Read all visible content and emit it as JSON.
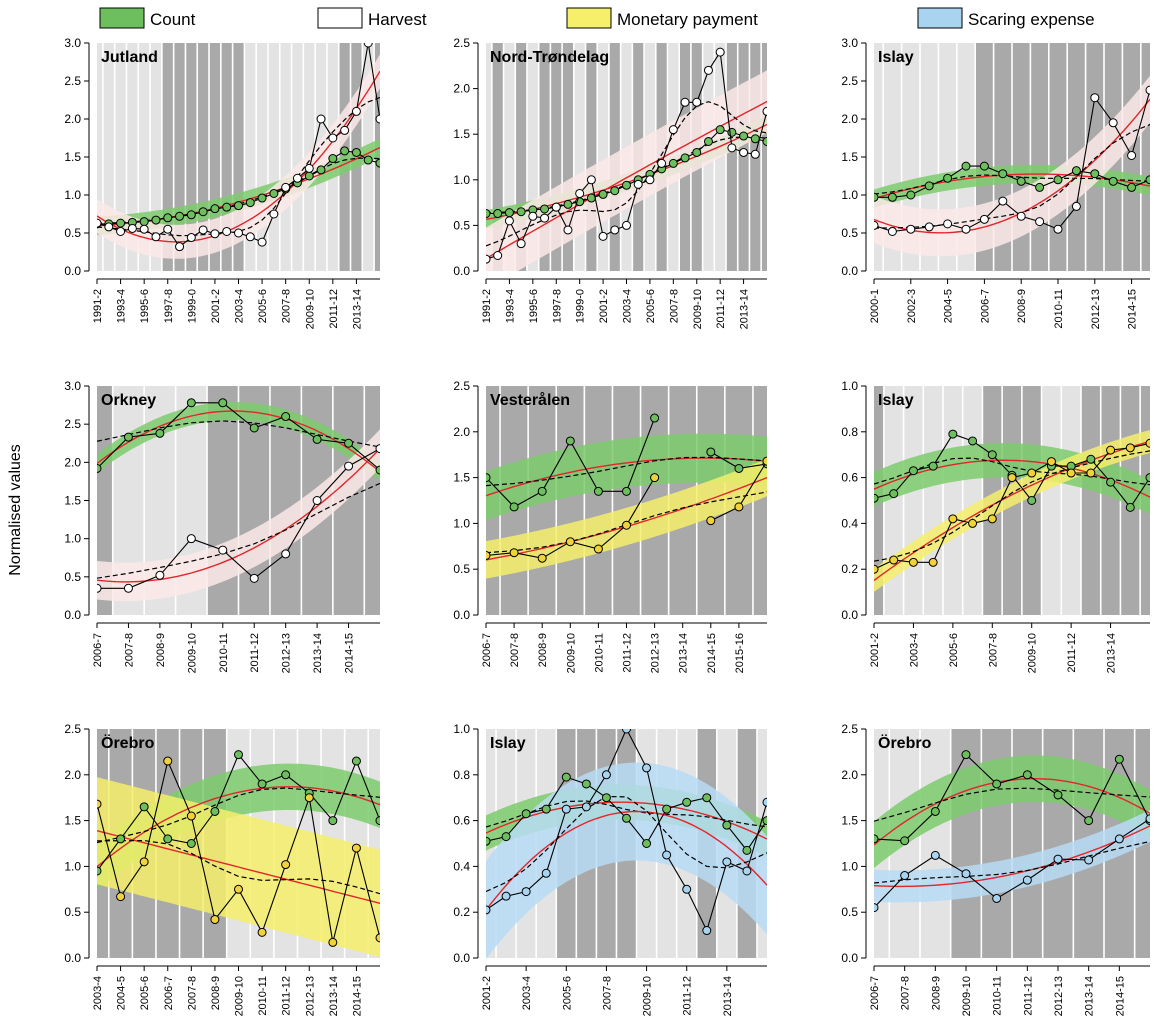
{
  "ylabel": "Normalised values",
  "legend": [
    {
      "label": "Count",
      "color": "#6dbf5e"
    },
    {
      "label": "Harvest",
      "color": "#ffffff"
    },
    {
      "label": "Monetary payment",
      "color": "#f5ef6a"
    },
    {
      "label": "Scaring expense",
      "color": "#a8d4f0"
    }
  ],
  "colors": {
    "count_fill": "#6dbf5e",
    "count_band": "#7ccb6c",
    "harvest_fill": "#ffffff",
    "harvest_band": "#fbe9e7",
    "payment_fill": "#f2d23a",
    "payment_band": "#f5ef6a",
    "scaring_fill": "#a8d4f0",
    "scaring_band": "#b7dcf5",
    "trend_red": "#e3262b",
    "trend_blue": "#2f5fb5",
    "shade_dark": "#a9a9a9",
    "shade_light": "#e3e3e3"
  },
  "chart_data": [
    {
      "title": "Jutland",
      "type": "line",
      "ylim": [
        0,
        3.0
      ],
      "yticks": [
        "0.0",
        "0.5",
        "1.0",
        "1.5",
        "2.0",
        "2.5",
        "3.0"
      ],
      "x": [
        1991,
        1992,
        1993,
        1994,
        1995,
        1996,
        1997,
        1998,
        1999,
        2000,
        2001,
        2002,
        2003,
        2004,
        2005,
        2006,
        2007,
        2008,
        2009,
        2010,
        2011,
        2012,
        2013,
        2014,
        2015
      ],
      "xticklabels": [
        "1991-2",
        "1993-4",
        "1995-6",
        "1997-8",
        "1999-0",
        "2001-2",
        "2003-4",
        "2005-6",
        "2007-8",
        "2009-10",
        "2011-12",
        "2013-14"
      ],
      "xtickpositions": [
        1991,
        1993,
        1995,
        1997,
        1999,
        2001,
        2003,
        2005,
        2007,
        2009,
        2011,
        2013
      ],
      "shading": [
        "light",
        "light",
        "light",
        "light",
        "light",
        "light",
        "dark",
        "dark",
        "dark",
        "dark",
        "dark",
        "dark",
        "dark",
        "light",
        "light",
        "light",
        "light",
        "light",
        "light",
        "light",
        "light",
        "dark",
        "dark",
        "light",
        "dark"
      ],
      "series": [
        {
          "name": "Count",
          "kind": "count",
          "values": [
            0.62,
            0.62,
            0.63,
            0.64,
            0.65,
            0.67,
            0.7,
            0.72,
            0.74,
            0.78,
            0.82,
            0.84,
            0.86,
            0.9,
            0.96,
            1.02,
            1.08,
            1.16,
            1.25,
            1.33,
            1.48,
            1.58,
            1.56,
            1.46,
            1.42
          ]
        },
        {
          "name": "Harvest",
          "kind": "harvest",
          "values": [
            0.63,
            0.58,
            0.52,
            0.56,
            0.55,
            0.45,
            0.55,
            0.32,
            0.44,
            0.54,
            0.49,
            0.52,
            0.5,
            0.45,
            0.38,
            0.75,
            1.1,
            1.22,
            1.35,
            2.0,
            1.75,
            1.85,
            2.1,
            3.0,
            2.0
          ]
        }
      ]
    },
    {
      "title": "Nord-Trøndelag",
      "type": "line",
      "ylim": [
        0,
        2.5
      ],
      "yticks": [
        "0.0",
        "0.5",
        "1.0",
        "1.5",
        "2.0",
        "2.5"
      ],
      "x": [
        1991,
        1992,
        1993,
        1994,
        1995,
        1996,
        1997,
        1998,
        1999,
        2000,
        2001,
        2002,
        2003,
        2004,
        2005,
        2006,
        2007,
        2008,
        2009,
        2010,
        2011,
        2012,
        2013,
        2014,
        2015
      ],
      "xticklabels": [
        "1991-2",
        "1993-4",
        "1995-6",
        "1997-8",
        "1999-0",
        "2001-2",
        "2003-4",
        "2005-6",
        "2007-8",
        "2009-10",
        "2011-12",
        "2013-14"
      ],
      "xtickpositions": [
        1991,
        1993,
        1995,
        1997,
        1999,
        2001,
        2003,
        2005,
        2007,
        2009,
        2011,
        2013
      ],
      "shading": [
        "light",
        "dark",
        "light",
        "dark",
        "light",
        "dark",
        "dark",
        "dark",
        "light",
        "dark",
        "light",
        "dark",
        "light",
        "dark",
        "light",
        "dark",
        "light",
        "dark",
        "dark",
        "light",
        "light",
        "dark",
        "dark",
        "dark",
        "dark"
      ],
      "series": [
        {
          "name": "Count",
          "kind": "count",
          "values": [
            0.63,
            0.63,
            0.64,
            0.65,
            0.67,
            0.68,
            0.7,
            0.73,
            0.76,
            0.8,
            0.84,
            0.88,
            0.94,
            1.0,
            1.06,
            1.12,
            1.18,
            1.24,
            1.3,
            1.42,
            1.55,
            1.52,
            1.48,
            1.45,
            1.42
          ]
        },
        {
          "name": "Harvest",
          "kind": "harvest",
          "values": [
            0.13,
            0.17,
            0.55,
            0.3,
            0.6,
            0.58,
            0.7,
            0.45,
            0.85,
            1.0,
            0.38,
            0.45,
            0.5,
            0.95,
            1.0,
            1.18,
            1.55,
            1.85,
            1.85,
            2.2,
            2.4,
            1.35,
            1.3,
            1.28,
            1.75
          ]
        }
      ]
    },
    {
      "title": "Islay",
      "type": "line",
      "ylim": [
        0,
        3.0
      ],
      "yticks": [
        "0.0",
        "0.5",
        "1.0",
        "1.5",
        "2.0",
        "2.5",
        "3.0"
      ],
      "x": [
        2000,
        2001,
        2002,
        2003,
        2004,
        2005,
        2006,
        2007,
        2008,
        2009,
        2010,
        2011,
        2012,
        2013,
        2014,
        2015
      ],
      "xticklabels": [
        "2000-1",
        "2002-3",
        "2004-5",
        "2006-7",
        "2008-9",
        "2010-11",
        "2012-13",
        "2014-15"
      ],
      "xtickpositions": [
        2000,
        2002,
        2004,
        2006,
        2008,
        2010,
        2012,
        2014
      ],
      "shading": [
        "light",
        "light",
        "light",
        "light",
        "light",
        "light",
        "dark",
        "dark",
        "dark",
        "dark",
        "dark",
        "dark",
        "dark",
        "dark",
        "dark",
        "dark"
      ],
      "series": [
        {
          "name": "Count",
          "kind": "count",
          "values": [
            0.97,
            0.97,
            1.0,
            1.12,
            1.22,
            1.38,
            1.38,
            1.28,
            1.18,
            1.1,
            1.2,
            1.32,
            1.28,
            1.18,
            1.1,
            1.2
          ]
        },
        {
          "name": "Harvest",
          "kind": "harvest",
          "values": [
            0.6,
            0.52,
            0.55,
            0.58,
            0.62,
            0.55,
            0.68,
            0.92,
            0.72,
            0.65,
            0.55,
            0.85,
            2.28,
            1.95,
            1.52,
            2.38
          ]
        }
      ]
    },
    {
      "title": "Orkney",
      "type": "line",
      "ylim": [
        0,
        3.0
      ],
      "yticks": [
        "0.0",
        "0.5",
        "1.0",
        "1.5",
        "2.0",
        "2.5",
        "3.0"
      ],
      "x": [
        2006,
        2007,
        2008,
        2009,
        2010,
        2011,
        2012,
        2013,
        2014,
        2015
      ],
      "xticklabels": [
        "2006-7",
        "2007-8",
        "2008-9",
        "2009-10",
        "2010-11",
        "2011-12",
        "2012-13",
        "2013-14",
        "2014-15"
      ],
      "xtickpositions": [
        2006,
        2007,
        2008,
        2009,
        2010,
        2011,
        2012,
        2013,
        2014
      ],
      "shading": [
        "dark",
        "light",
        "light",
        "light",
        "dark",
        "dark",
        "dark",
        "dark",
        "dark",
        "dark"
      ],
      "series": [
        {
          "name": "Count",
          "kind": "count",
          "values": [
            1.92,
            2.33,
            2.38,
            2.78,
            2.78,
            2.45,
            2.6,
            2.3,
            2.25,
            1.9
          ]
        },
        {
          "name": "Harvest",
          "kind": "harvest",
          "values": [
            0.35,
            0.35,
            0.52,
            1.0,
            0.85,
            0.48,
            0.8,
            1.5,
            1.95,
            2.18
          ]
        }
      ]
    },
    {
      "title": "Vesterålen",
      "type": "line",
      "ylim": [
        0,
        2.5
      ],
      "yticks": [
        "0.0",
        "0.5",
        "1.0",
        "1.5",
        "2.0",
        "2.5"
      ],
      "x": [
        2006,
        2007,
        2008,
        2009,
        2010,
        2011,
        2012,
        2013,
        2014,
        2015,
        2016
      ],
      "xticklabels": [
        "2006-7",
        "2007-8",
        "2008-9",
        "2009-10",
        "2010-11",
        "2011-12",
        "2012-13",
        "2013-14",
        "2014-15",
        "2015-16"
      ],
      "xtickpositions": [
        2006,
        2007,
        2008,
        2009,
        2010,
        2011,
        2012,
        2013,
        2014,
        2015
      ],
      "shading": [
        "dark",
        "dark",
        "dark",
        "dark",
        "dark",
        "dark",
        "dark",
        "dark",
        "dark",
        "dark",
        "dark"
      ],
      "series": [
        {
          "name": "Count",
          "kind": "count",
          "values": [
            1.5,
            1.18,
            1.35,
            1.9,
            1.35,
            1.35,
            2.15,
            null,
            1.78,
            1.6,
            1.65
          ]
        },
        {
          "name": "Monetary payment",
          "kind": "payment",
          "values": [
            0.65,
            0.68,
            0.62,
            0.8,
            0.72,
            0.98,
            1.5,
            null,
            1.03,
            1.18,
            1.68
          ]
        }
      ]
    },
    {
      "title": "Islay",
      "type": "line",
      "ylim": [
        0,
        1.0
      ],
      "yticks": [
        "0.0",
        "0.2",
        "0.4",
        "0.6",
        "0.8",
        "1.0"
      ],
      "x": [
        2001,
        2002,
        2003,
        2004,
        2005,
        2006,
        2007,
        2008,
        2009,
        2010,
        2011,
        2012,
        2013,
        2014,
        2015
      ],
      "xticklabels": [
        "2001-2",
        "2003-4",
        "2005-6",
        "2007-8",
        "2009-10",
        "2011-12",
        "2013-14"
      ],
      "xtickpositions": [
        2001,
        2003,
        2005,
        2007,
        2009,
        2011,
        2013
      ],
      "shading": [
        "dark",
        "light",
        "light",
        "light",
        "light",
        "light",
        "dark",
        "dark",
        "dark",
        "light",
        "light",
        "dark",
        "dark",
        "dark",
        "dark"
      ],
      "series": [
        {
          "name": "Count",
          "kind": "count",
          "values": [
            0.51,
            0.53,
            0.63,
            0.65,
            0.79,
            0.76,
            0.7,
            0.61,
            0.5,
            0.65,
            0.65,
            0.68,
            0.58,
            0.47,
            0.6
          ]
        },
        {
          "name": "Monetary payment",
          "kind": "payment",
          "values": [
            0.2,
            0.24,
            0.23,
            0.23,
            0.42,
            0.4,
            0.42,
            0.6,
            0.62,
            0.67,
            0.62,
            0.62,
            0.72,
            0.73,
            0.75
          ]
        }
      ]
    },
    {
      "title": "Örebro",
      "type": "line",
      "ylim": [
        0,
        2.5
      ],
      "yticks": [
        "0.0",
        "0.5",
        "1.0",
        "1.5",
        "2.0",
        "2.5"
      ],
      "x": [
        2003,
        2004,
        2005,
        2006,
        2007,
        2008,
        2009,
        2010,
        2011,
        2012,
        2013,
        2014,
        2015
      ],
      "xticklabels": [
        "2003-4",
        "2004-5",
        "2005-6",
        "2006-7",
        "2007-8",
        "2008-9",
        "2009-10",
        "2010-11",
        "2011-12",
        "2012-13",
        "2013-14",
        "2014-15"
      ],
      "xtickpositions": [
        2003,
        2004,
        2005,
        2006,
        2007,
        2008,
        2009,
        2010,
        2011,
        2012,
        2013,
        2014
      ],
      "shading": [
        "dark",
        "dark",
        "dark",
        "dark",
        "dark",
        "dark",
        "light",
        "light",
        "light",
        "light",
        "light",
        "light",
        "light"
      ],
      "series": [
        {
          "name": "Count",
          "kind": "count",
          "values": [
            0.95,
            1.3,
            1.65,
            1.3,
            1.25,
            1.6,
            2.22,
            1.9,
            2.0,
            1.8,
            1.5,
            2.15,
            1.5
          ]
        },
        {
          "name": "Monetary payment",
          "kind": "payment",
          "values": [
            1.68,
            0.67,
            1.05,
            2.15,
            1.55,
            0.42,
            0.75,
            0.28,
            1.02,
            1.75,
            0.17,
            1.2,
            0.22
          ]
        }
      ]
    },
    {
      "title": "Islay",
      "type": "line",
      "ylim": [
        0,
        1.0
      ],
      "yticks": [
        "0.0",
        "0.2",
        "0.4",
        "0.6",
        "0.8",
        "1.0"
      ],
      "x": [
        2001,
        2002,
        2003,
        2004,
        2005,
        2006,
        2007,
        2008,
        2009,
        2010,
        2011,
        2012,
        2013,
        2014,
        2015
      ],
      "xticklabels": [
        "2001-2",
        "2003-4",
        "2005-6",
        "2007-8",
        "2009-10",
        "2011-12",
        "2013-14"
      ],
      "xtickpositions": [
        2001,
        2003,
        2005,
        2007,
        2009,
        2011,
        2013
      ],
      "shading": [
        "light",
        "light",
        "light",
        "light",
        "dark",
        "dark",
        "dark",
        "dark",
        "light",
        "light",
        "light",
        "dark",
        "light",
        "dark",
        "light"
      ],
      "series": [
        {
          "name": "Count",
          "kind": "count",
          "values": [
            0.51,
            0.53,
            0.63,
            0.65,
            0.79,
            0.76,
            0.7,
            0.61,
            0.5,
            0.65,
            0.68,
            0.7,
            0.58,
            0.47,
            0.6
          ]
        },
        {
          "name": "Scaring expense",
          "kind": "scaring",
          "values": [
            0.21,
            0.27,
            0.29,
            0.37,
            0.65,
            0.66,
            0.8,
            1.0,
            0.83,
            0.45,
            0.3,
            0.12,
            0.42,
            0.38,
            0.68
          ]
        }
      ]
    },
    {
      "title": "Örebro",
      "type": "line",
      "ylim": [
        0,
        2.5
      ],
      "yticks": [
        "0.0",
        "0.5",
        "1.0",
        "1.5",
        "2.0",
        "2.5"
      ],
      "x": [
        2006,
        2007,
        2008,
        2009,
        2010,
        2011,
        2012,
        2013,
        2014,
        2015
      ],
      "xticklabels": [
        "2006-7",
        "2007-8",
        "2008-9",
        "2009-10",
        "2010-11",
        "2011-12",
        "2012-13",
        "2013-14",
        "2014-15"
      ],
      "xtickpositions": [
        2006,
        2007,
        2008,
        2009,
        2010,
        2011,
        2012,
        2013,
        2014
      ],
      "shading": [
        "light",
        "light",
        "light",
        "dark",
        "dark",
        "dark",
        "dark",
        "dark",
        "dark",
        "dark"
      ],
      "series": [
        {
          "name": "Count",
          "kind": "count",
          "values": [
            1.3,
            1.28,
            1.6,
            2.22,
            1.9,
            2.0,
            1.78,
            1.5,
            2.17,
            1.5
          ]
        },
        {
          "name": "Scaring expense",
          "kind": "scaring",
          "values": [
            0.55,
            0.9,
            1.12,
            0.92,
            0.65,
            0.85,
            1.08,
            1.07,
            1.3,
            1.52
          ]
        }
      ]
    }
  ]
}
